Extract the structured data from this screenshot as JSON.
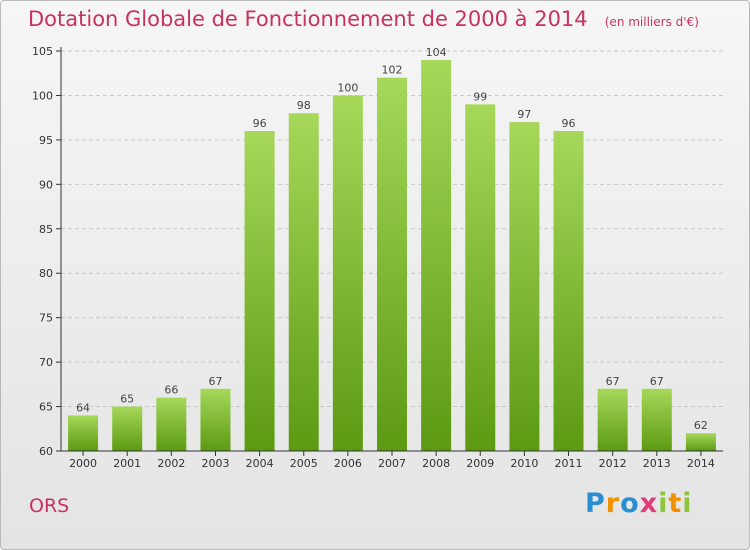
{
  "header": {
    "title": "Dotation Globale de Fonctionnement de 2000 à 2014",
    "subtitle": "(en milliers d'€)"
  },
  "footer": {
    "commune": "ORS",
    "brand_letters": [
      "P",
      "r",
      "o",
      "x",
      "i",
      "t",
      "i"
    ],
    "brand_colors": [
      "#2a8fd0",
      "#f29100",
      "#2a8fd0",
      "#e23b7a",
      "#8cc63f",
      "#f29100",
      "#8cc63f"
    ]
  },
  "colors": {
    "title": "#c8325e",
    "bar_light": "#a6d85a",
    "bar_dark": "#5c9a12",
    "grid": "#c9c9c9",
    "axis": "#333333"
  },
  "chart_data": {
    "type": "bar",
    "categories": [
      "2000",
      "2001",
      "2002",
      "2003",
      "2004",
      "2005",
      "2006",
      "2007",
      "2008",
      "2009",
      "2010",
      "2011",
      "2012",
      "2013",
      "2014"
    ],
    "values": [
      64,
      65,
      66,
      67,
      96,
      98,
      100,
      102,
      104,
      99,
      97,
      96,
      67,
      67,
      62
    ],
    "title": "Dotation Globale de Fonctionnement de 2000 à 2014",
    "subtitle": "(en milliers d'€)",
    "ylim": [
      60,
      105
    ],
    "yticks": [
      60,
      65,
      70,
      75,
      80,
      85,
      90,
      95,
      100,
      105
    ],
    "grid": true,
    "data_labels": true
  }
}
